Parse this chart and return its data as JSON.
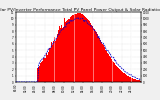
{
  "title": "Solar PV/Inverter Performance Total PV Panel Power Output & Solar Radiation",
  "title_fontsize": 3.2,
  "bg_color": "#f0f0f0",
  "plot_bg": "#ffffff",
  "grid_color": "#aaaaaa",
  "bar_color": "#ff0000",
  "line_color": "#0000cc",
  "n_points": 144,
  "xlim": [
    0,
    143
  ],
  "ylim_left": [
    0,
    11
  ],
  "ylim_right": [
    0,
    1100
  ],
  "left_yticks": [
    0,
    1,
    2,
    3,
    4,
    5,
    6,
    7,
    8,
    9,
    10,
    11
  ],
  "right_yticks": [
    0,
    100,
    200,
    300,
    400,
    500,
    600,
    700,
    800,
    900,
    1000,
    1100
  ],
  "x_tick_positions": [
    0,
    11,
    22,
    33,
    44,
    55,
    66,
    77,
    88,
    99,
    110,
    121,
    132,
    143
  ],
  "x_tick_labels": [
    "00:00",
    "02:00",
    "04:00",
    "06:00",
    "08:00",
    "10:00",
    "12:00",
    "14:00",
    "16:00",
    "18:00",
    "20:00",
    "22:00",
    "24:00",
    ""
  ]
}
